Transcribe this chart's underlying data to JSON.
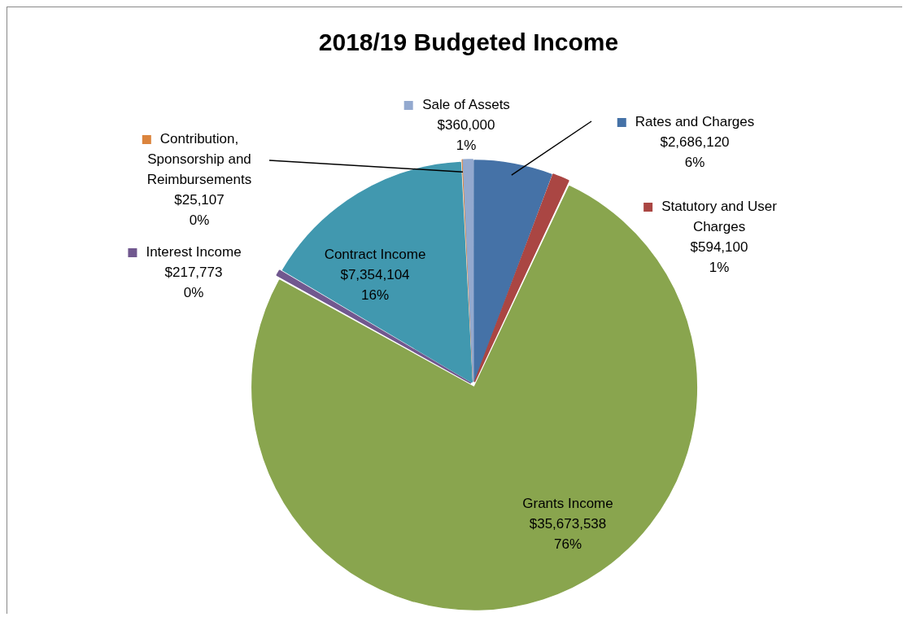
{
  "chart_data": {
    "type": "pie",
    "title": "2018/19 Budgeted Income",
    "categories": [
      "Rates and Charges",
      "Statutory and User Charges",
      "Grants Income",
      "Interest Income",
      "Contract Income",
      "Contribution, Sponsorship and Reimbursements",
      "Sale of Assets"
    ],
    "values": [
      2686120,
      594100,
      35673538,
      217773,
      7354104,
      25107,
      360000
    ],
    "value_labels": [
      "$2,686,120\n6%",
      "$594,100\n1%",
      "$35,673,538\n76%",
      "$217,773\n0%",
      "$7,354,104\n16%",
      "$25,107\n0%",
      "$360,000\n1%"
    ],
    "colors": [
      "#4572a7",
      "#aa4643",
      "#89a54e",
      "#71588f",
      "#4198af",
      "#db843d",
      "#93a9cf"
    ],
    "legend": "top"
  }
}
